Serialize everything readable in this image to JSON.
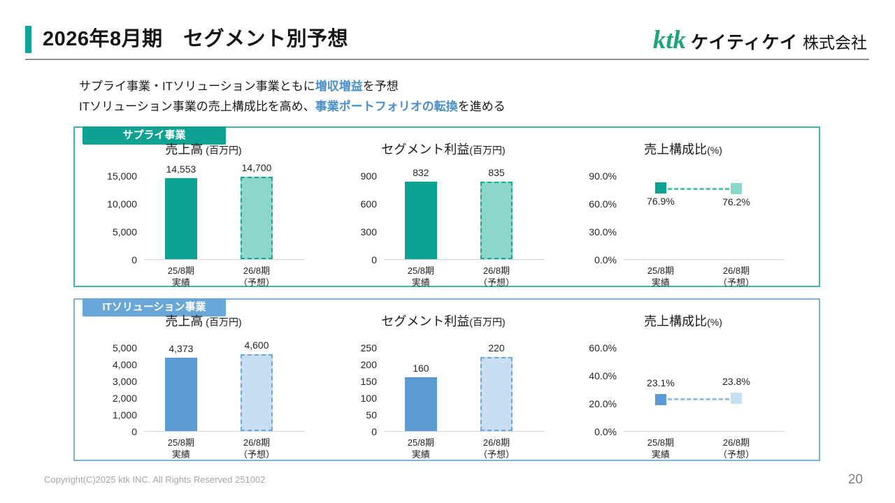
{
  "header": {
    "title": "2026年8月期　セグメント別予想",
    "logo": {
      "ktk": "ktk",
      "name_bold": "ケイティケイ",
      "name_suffix": "株式会社"
    }
  },
  "lead": {
    "highlight_color": "#4a90c8",
    "line1_pre": "サプライ事業・ITソリューション事業ともに",
    "line1_highlight": "増収増益",
    "line1_post": "を予想",
    "line2_pre": "ITソリューション事業の売上構成比を高め、",
    "line2_highlight": "事業ポートフォリオの転換",
    "line2_post": "を進める"
  },
  "sections": [
    {
      "badge": "サプライ事業",
      "colors": {
        "solid_fill": "#0ba293",
        "forecast_fill": "#8dd7ca",
        "forecast_border": "#17a897",
        "connector": "#56c2b4",
        "panel_border": "#45b7aa",
        "badge_bg": "#0fa192"
      }
    },
    {
      "badge": "ITソリューション事業",
      "colors": {
        "solid_fill": "#5b9ad2",
        "forecast_fill": "#c8def2",
        "forecast_border": "#6ea7da",
        "connector": "#94c0e6",
        "panel_border": "#7fb2e0",
        "badge_bg": "#69a7d9"
      }
    }
  ],
  "chart_data": [
    {
      "section": 0,
      "type": "bar",
      "title": "売上高",
      "unit": " (百万円)",
      "ylim": [
        0,
        15000
      ],
      "yticks": [
        {
          "label": "15,000",
          "value": 15000
        },
        {
          "label": "10,000",
          "value": 10000
        },
        {
          "label": "5,000",
          "value": 5000
        },
        {
          "label": "0",
          "value": 0
        }
      ],
      "categories": [
        [
          "25/8期",
          "実績"
        ],
        [
          "26/8期",
          "（予想）"
        ]
      ],
      "values": [
        14553,
        14700
      ],
      "value_labels": [
        "14,553",
        "14,700"
      ]
    },
    {
      "section": 0,
      "type": "bar",
      "title": "セグメント利益",
      "unit": "(百万円)",
      "ylim": [
        0,
        900
      ],
      "yticks": [
        {
          "label": "900",
          "value": 900
        },
        {
          "label": "600",
          "value": 600
        },
        {
          "label": "300",
          "value": 300
        },
        {
          "label": "0",
          "value": 0
        }
      ],
      "categories": [
        [
          "25/8期",
          "実績"
        ],
        [
          "26/8期",
          "（予想）"
        ]
      ],
      "values": [
        832,
        835
      ],
      "value_labels": [
        "832",
        "835"
      ]
    },
    {
      "section": 0,
      "type": "line",
      "title": "売上構成比",
      "unit": "(%)",
      "ylim": [
        0,
        90
      ],
      "yticks": [
        {
          "label": "90.0%",
          "value": 90
        },
        {
          "label": "60.0%",
          "value": 60
        },
        {
          "label": "30.0%",
          "value": 30
        },
        {
          "label": "0.0%",
          "value": 0
        }
      ],
      "categories": [
        [
          "25/8期",
          "実績"
        ],
        [
          "26/8期",
          "（予想）"
        ]
      ],
      "values": [
        76.9,
        76.2
      ],
      "value_labels": [
        "76.9%",
        "76.2%"
      ],
      "label_position": "below"
    },
    {
      "section": 1,
      "type": "bar",
      "title": "売上高",
      "unit": " (百万円)",
      "ylim": [
        0,
        5000
      ],
      "yticks": [
        {
          "label": "5,000",
          "value": 5000
        },
        {
          "label": "4,000",
          "value": 4000
        },
        {
          "label": "3,000",
          "value": 3000
        },
        {
          "label": "2,000",
          "value": 2000
        },
        {
          "label": "1,000",
          "value": 1000
        },
        {
          "label": "0",
          "value": 0
        }
      ],
      "categories": [
        [
          "25/8期",
          "実績"
        ],
        [
          "26/8期",
          "（予想）"
        ]
      ],
      "values": [
        4373,
        4600
      ],
      "value_labels": [
        "4,373",
        "4,600"
      ]
    },
    {
      "section": 1,
      "type": "bar",
      "title": "セグメント利益",
      "unit": "(百万円)",
      "ylim": [
        0,
        250
      ],
      "yticks": [
        {
          "label": "250",
          "value": 250
        },
        {
          "label": "200",
          "value": 200
        },
        {
          "label": "150",
          "value": 150
        },
        {
          "label": "100",
          "value": 100
        },
        {
          "label": "50",
          "value": 50
        },
        {
          "label": "0",
          "value": 0
        }
      ],
      "categories": [
        [
          "25/8期",
          "実績"
        ],
        [
          "26/8期",
          "（予想）"
        ]
      ],
      "values": [
        160,
        220
      ],
      "value_labels": [
        "160",
        "220"
      ]
    },
    {
      "section": 1,
      "type": "line",
      "title": "売上構成比",
      "unit": "(%)",
      "ylim": [
        0,
        60
      ],
      "yticks": [
        {
          "label": "60.0%",
          "value": 60
        },
        {
          "label": "40.0%",
          "value": 40
        },
        {
          "label": "20.0%",
          "value": 20
        },
        {
          "label": "0.0%",
          "value": 0
        }
      ],
      "categories": [
        [
          "25/8期",
          "実績"
        ],
        [
          "26/8期",
          "（予想）"
        ]
      ],
      "values": [
        23.1,
        23.8
      ],
      "value_labels": [
        "23.1%",
        "23.8%"
      ],
      "label_position": "above"
    }
  ],
  "footer": {
    "copyright": "Copyright(C)2025 ktk INC. All Rights Reserved  251002",
    "page": "20"
  }
}
